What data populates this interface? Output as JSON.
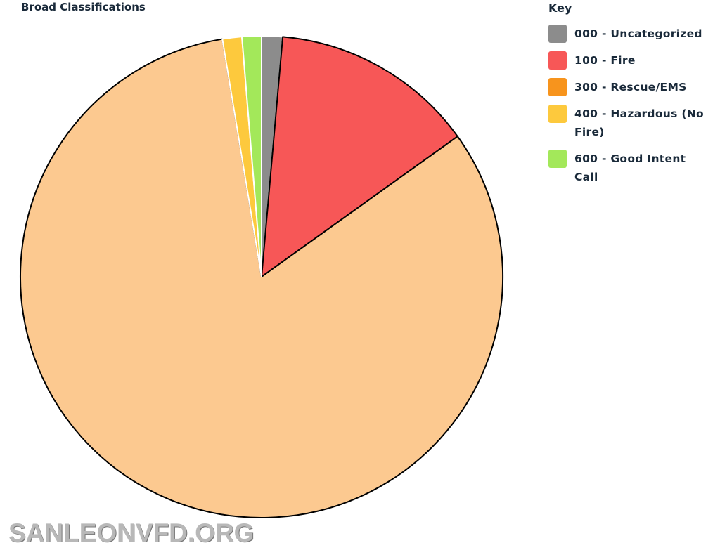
{
  "chart_data": {
    "type": "pie",
    "title": "Broad Classifications",
    "legend_title": "Key",
    "categories": [
      "000 - Uncategorized",
      "100 - Fire",
      "300 - Rescue/EMS",
      "400 - Hazardous (No Fire)",
      "600 - Good Intent Call"
    ],
    "values": [
      1.4,
      13.7,
      82.3,
      1.3,
      1.3
    ],
    "legend_colors": [
      "#8c8c8c",
      "#f75757",
      "#f7941d",
      "#fdc93d",
      "#a3e85a"
    ],
    "slice_colors": [
      "#8c8c8c",
      "#f75757",
      "#fcc990",
      "#fdc93d",
      "#a3e85a"
    ],
    "legend_position": "right"
  },
  "watermark": "SANLEONVFD.ORG"
}
